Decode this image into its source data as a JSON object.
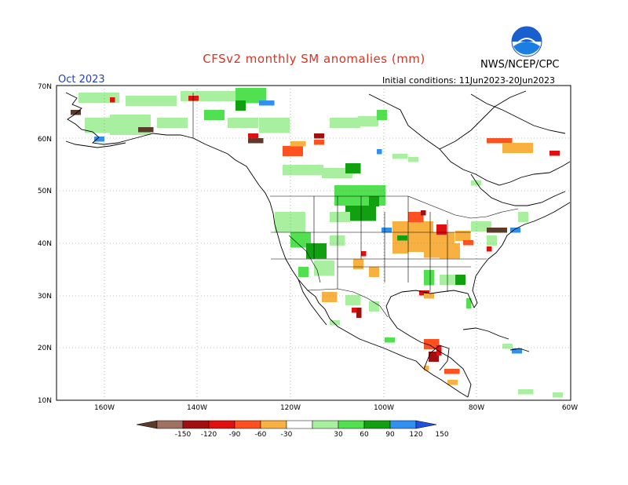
{
  "title": "CFSv2 monthly SM anomalies (mm)",
  "month": "Oct 2023",
  "agency": "NWS/NCEP/CPC",
  "logo_text": "NOAA",
  "initial_conditions": "Initial conditions: 11Jun2023-20Jun2023",
  "lat_ticks": [
    "70N",
    "60N",
    "50N",
    "40N",
    "30N",
    "20N",
    "10N"
  ],
  "lon_ticks": [
    "160W",
    "140W",
    "120W",
    "100W",
    "80W",
    "60W"
  ],
  "colorbar": {
    "labels": [
      "-150",
      "-120",
      "-90",
      "-60",
      "-30",
      "30",
      "60",
      "90",
      "120",
      "150"
    ],
    "colors": [
      "#5a3a2a",
      "#a07060",
      "#a01010",
      "#e01010",
      "#ff5020",
      "#f8b040",
      "#ffffff",
      "#a8f0a0",
      "#50e050",
      "#10a010",
      "#3090f0",
      "#2050e0"
    ]
  },
  "anomaly_colors": {
    "light_green": "#a8f0a0",
    "green": "#50e050",
    "dark_green": "#10a010",
    "blue": "#3090f0",
    "orange": "#f8b040",
    "red_orange": "#ff5020",
    "red": "#e01010",
    "dark_red": "#a01010",
    "brown": "#5a3a2a"
  }
}
